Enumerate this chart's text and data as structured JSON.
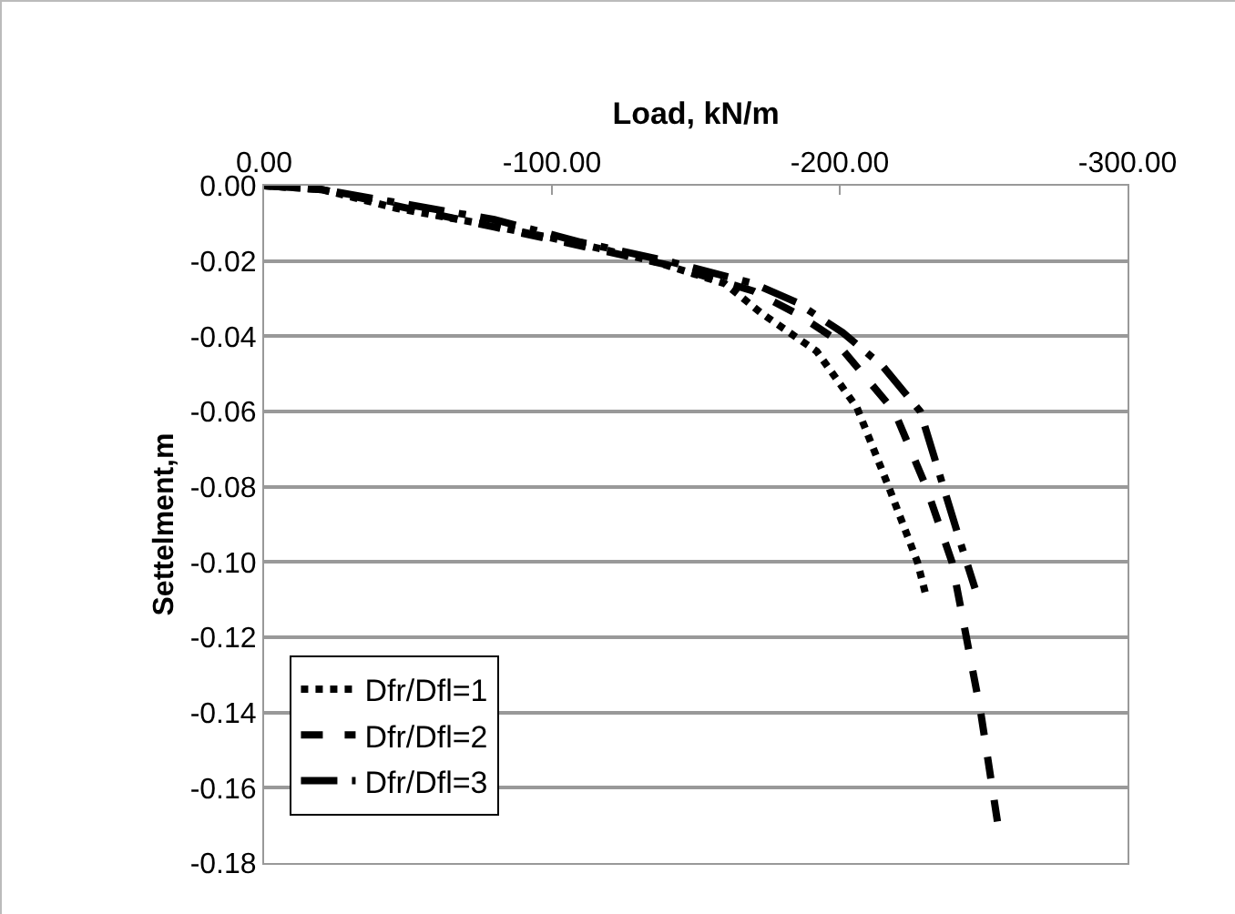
{
  "chart_data": {
    "type": "line",
    "xlabel": "Load, kN/m",
    "ylabel": "Settelment,m",
    "xlim": [
      0,
      -300
    ],
    "xticks": [
      {
        "value": 0,
        "label": "0.00"
      },
      {
        "value": -100,
        "label": "-100.00"
      },
      {
        "value": -200,
        "label": "-200.00"
      },
      {
        "value": -300,
        "label": "-300.00"
      }
    ],
    "ylim": [
      -0.18,
      0
    ],
    "yticks": [
      {
        "value": 0,
        "label": "0.00"
      },
      -0.02,
      -0.04,
      -0.06,
      -0.08,
      {
        "value": -0.1,
        "label": "-0.10"
      },
      -0.12,
      -0.14,
      -0.16,
      -0.18
    ],
    "grid": "y",
    "legend": "bottom left",
    "marker": "none",
    "series": [
      {
        "name": "Dfr/Dfl=1",
        "color": "#000000",
        "line_style": "dotted",
        "x": [
          0,
          -20,
          -46,
          -75,
          -107,
          -135,
          -160,
          -173,
          -192,
          -206,
          -217,
          -227,
          -230
        ],
        "values": [
          0,
          -0.001,
          -0.006,
          -0.01,
          -0.015,
          -0.02,
          -0.026,
          -0.034,
          -0.044,
          -0.059,
          -0.08,
          -0.1,
          -0.109
        ]
      },
      {
        "name": "Dfr/Dfl=2",
        "color": "#000000",
        "line_style": "dashed",
        "x": [
          0,
          -20,
          -50,
          -80,
          -110,
          -140,
          -170,
          -185,
          -197,
          -219,
          -230,
          -239,
          -244,
          -249,
          -255
        ],
        "values": [
          0,
          -0.001,
          -0.006,
          -0.011,
          -0.016,
          -0.021,
          -0.028,
          -0.034,
          -0.04,
          -0.06,
          -0.08,
          -0.1,
          -0.12,
          -0.14,
          -0.17
        ]
      },
      {
        "name": "Dfr/Dfl=3",
        "color": "#000000",
        "line_style": "longdashdot",
        "x": [
          0,
          -20,
          -50,
          -80,
          -110,
          -140,
          -170,
          -185,
          -201,
          -215,
          -228,
          -236,
          -242,
          -247
        ],
        "values": [
          0,
          -0.001,
          -0.005,
          -0.009,
          -0.015,
          -0.02,
          -0.026,
          -0.031,
          -0.039,
          -0.048,
          -0.06,
          -0.08,
          -0.095,
          -0.107
        ]
      }
    ]
  }
}
